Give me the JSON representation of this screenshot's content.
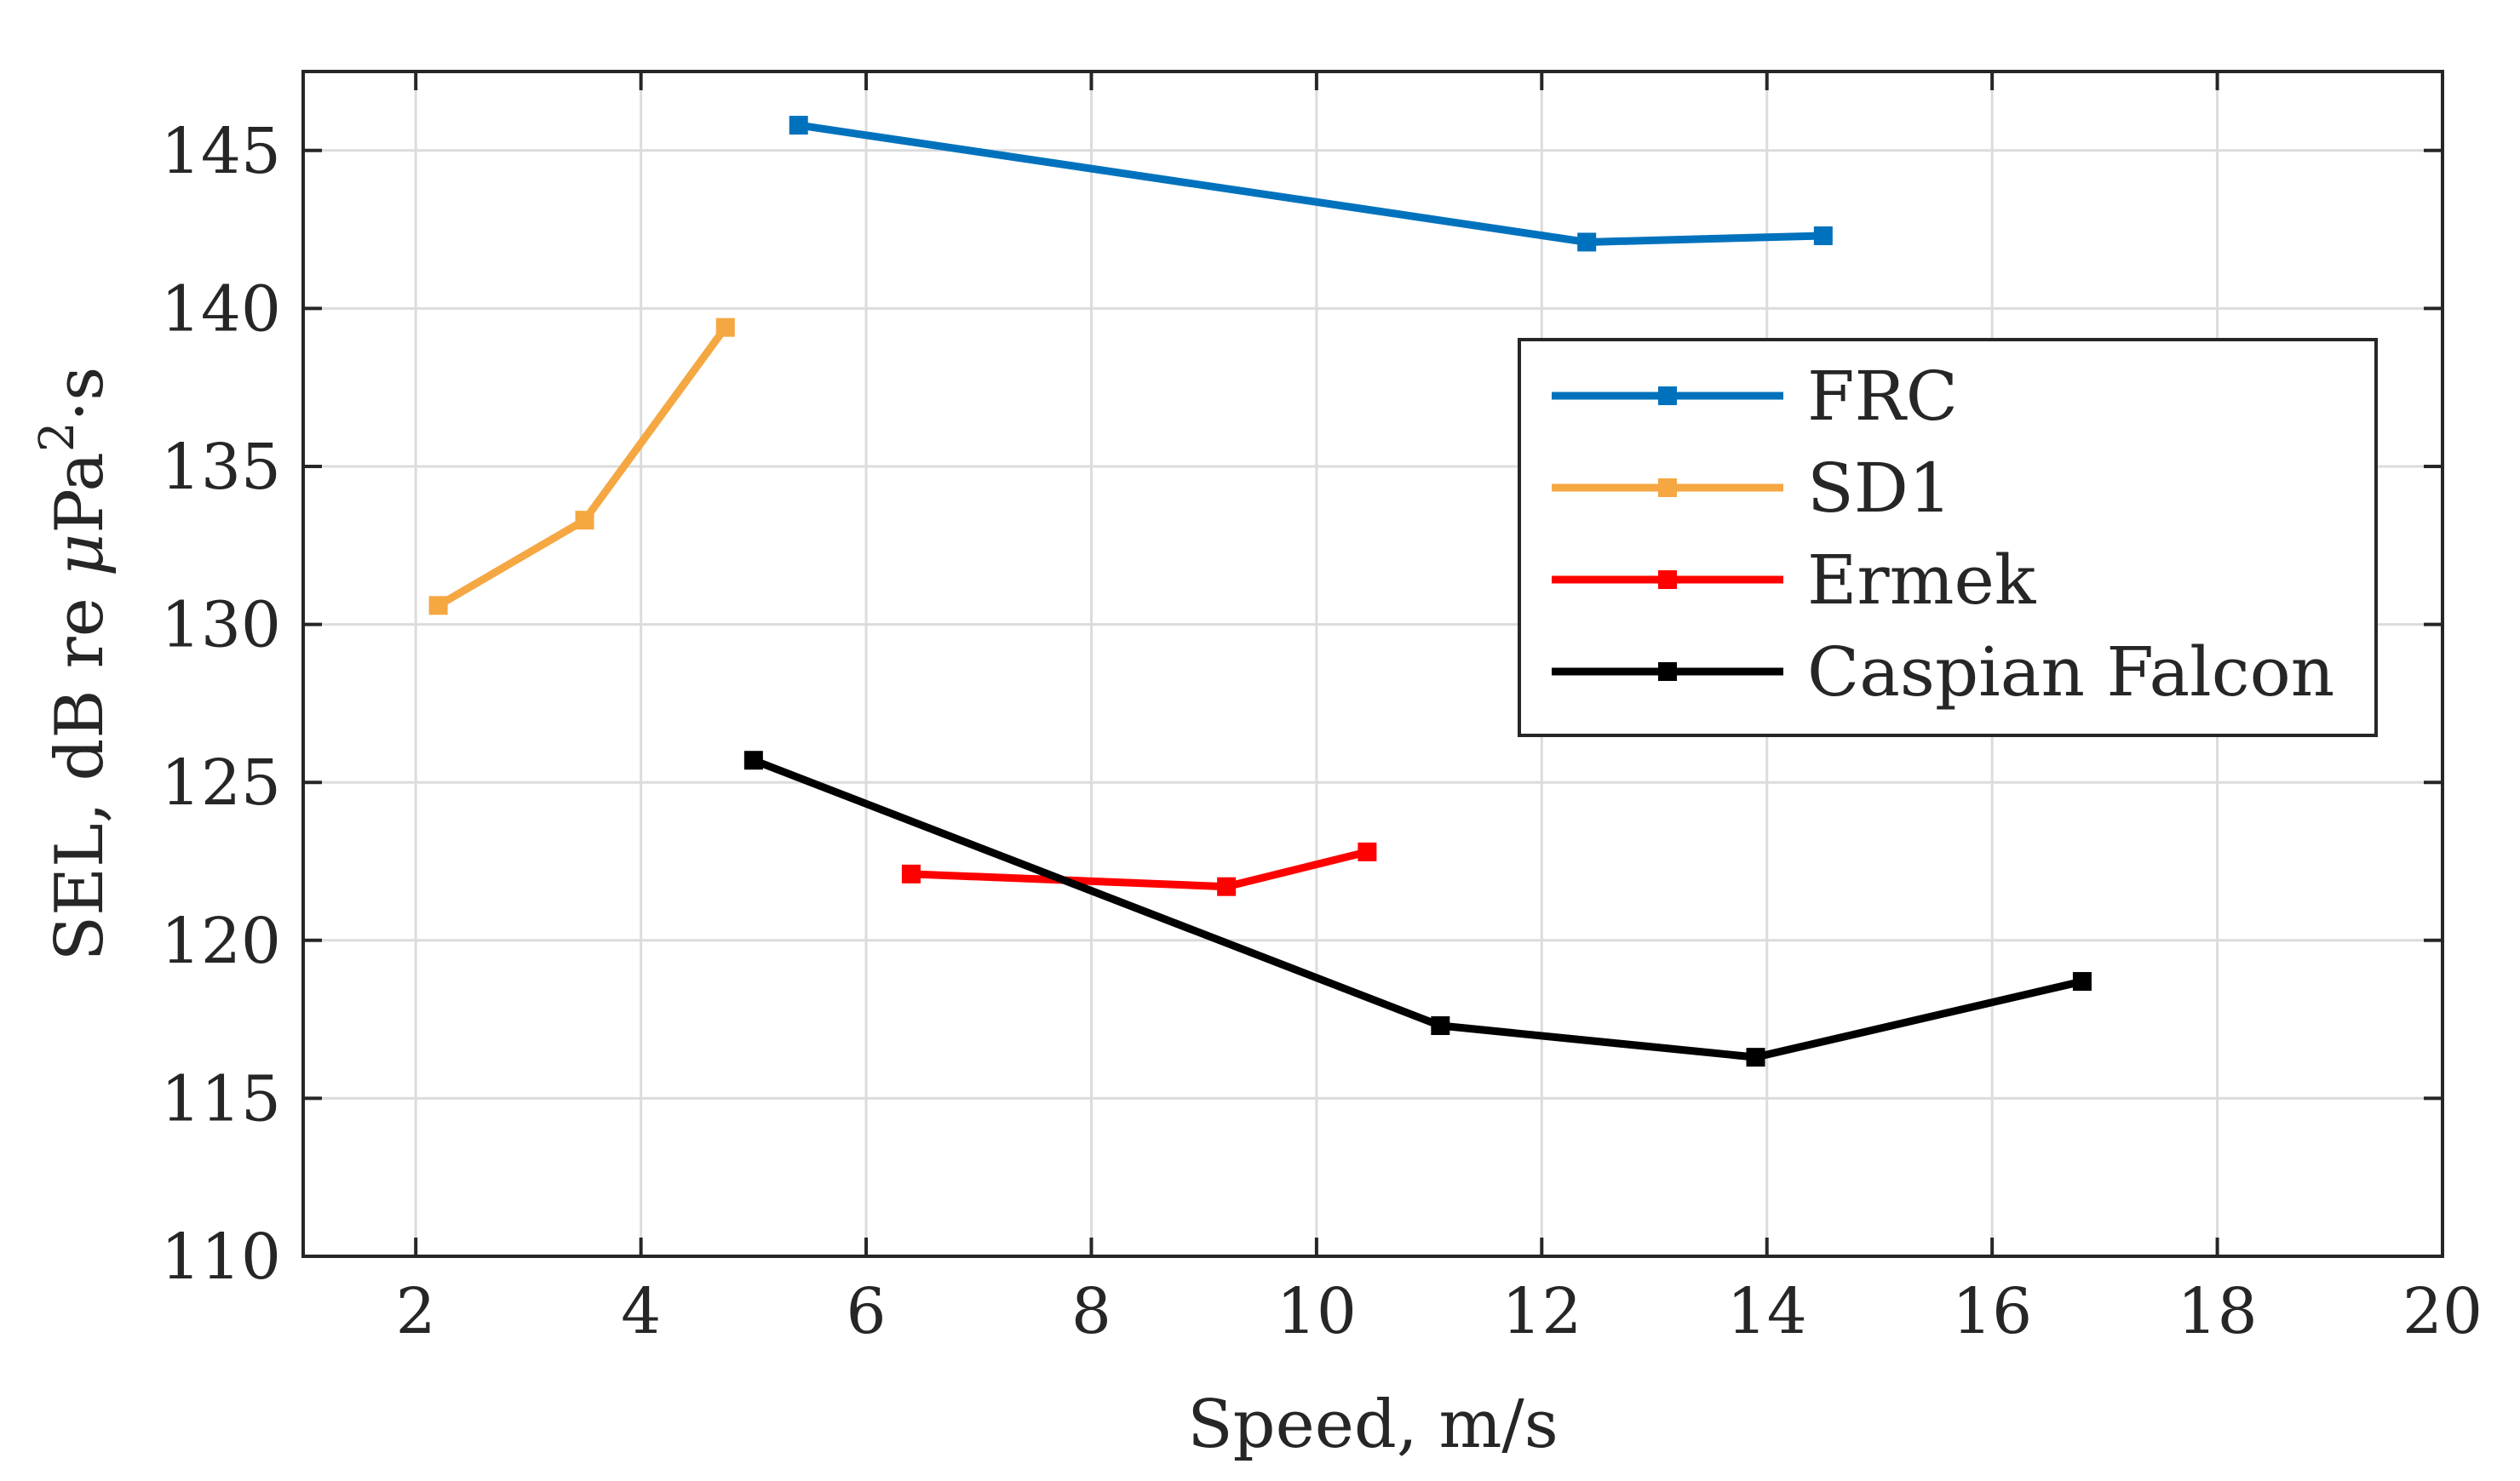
{
  "chart_data": {
    "type": "line",
    "title": "",
    "xlabel": "Speed, m/s",
    "ylabel_parts": {
      "prefix": "SEL, dB re ",
      "mu": "μ",
      "unit": "Pa",
      "sup": "2",
      "suffix": "·s"
    },
    "xlim": [
      1,
      20
    ],
    "ylim": [
      110,
      147.5
    ],
    "xticks": [
      2,
      4,
      6,
      8,
      10,
      12,
      14,
      16,
      18,
      20
    ],
    "yticks": [
      110,
      115,
      120,
      125,
      130,
      135,
      140,
      145
    ],
    "xtick_labels": [
      "2",
      "4",
      "6",
      "8",
      "10",
      "12",
      "14",
      "16",
      "18",
      "20"
    ],
    "ytick_labels": [
      "110",
      "115",
      "120",
      "125",
      "130",
      "135",
      "140",
      "145"
    ],
    "grid": true,
    "legend_position": "right",
    "series": [
      {
        "name": "FRC",
        "color": "#0072BD",
        "x": [
          5.4,
          12.4,
          14.5
        ],
        "y": [
          145.8,
          142.1,
          142.3
        ]
      },
      {
        "name": "SD1",
        "color": "#F5A742",
        "x": [
          2.2,
          3.5,
          4.75
        ],
        "y": [
          130.6,
          133.3,
          139.4
        ]
      },
      {
        "name": "Ermek",
        "color": "#FF0000",
        "x": [
          6.4,
          9.2,
          10.45
        ],
        "y": [
          122.1,
          121.7,
          122.8
        ]
      },
      {
        "name": "Caspian Falcon",
        "color": "#000000",
        "x": [
          5.0,
          11.1,
          13.9,
          16.8
        ],
        "y": [
          125.7,
          117.3,
          116.3,
          118.7
        ]
      }
    ]
  }
}
